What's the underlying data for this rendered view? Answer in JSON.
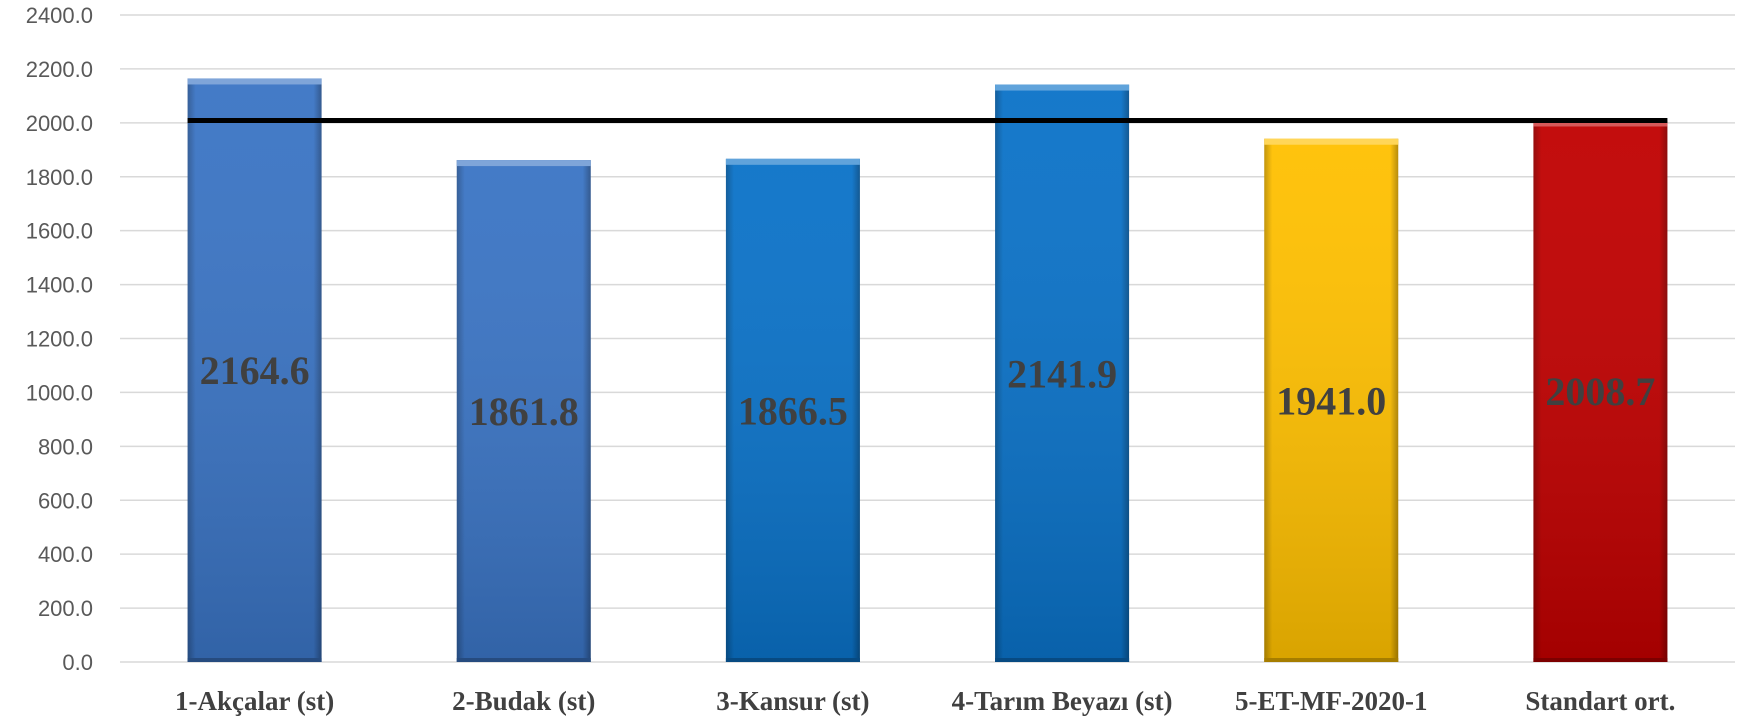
{
  "chart_data": {
    "type": "bar",
    "title": "",
    "xlabel": "",
    "ylabel": "",
    "categories": [
      "1-Akçalar (st)",
      "2-Budak (st)",
      "3-Kansur (st)",
      "4-Tarım Beyazı (st)",
      "5-ET-MF-2020-1",
      "Standart ort."
    ],
    "values": [
      2164.6,
      1861.8,
      1866.5,
      2141.9,
      1941.0,
      2008.7
    ],
    "data_labels": [
      "2164.6",
      "1861.8",
      "1866.5",
      "2141.9",
      "1941.0",
      "2008.7"
    ],
    "bar_colors": [
      "#3a74c4",
      "#3a74c4",
      "#0a72c8",
      "#0a72c8",
      "#ffc000",
      "#c00000"
    ],
    "reference_line": {
      "value": 2008.7,
      "color": "#000000"
    },
    "ylim": [
      0,
      2400
    ],
    "yticks": [
      0,
      200,
      400,
      600,
      800,
      1000,
      1200,
      1400,
      1600,
      1800,
      2000,
      2200,
      2400
    ],
    "ytick_labels": [
      "0.0",
      "200.0",
      "400.0",
      "600.0",
      "800.0",
      "1000.0",
      "1200.0",
      "1400.0",
      "1600.0",
      "1800.0",
      "2000.0",
      "2200.0",
      "2400.0"
    ],
    "grid": true,
    "legend": "none"
  }
}
